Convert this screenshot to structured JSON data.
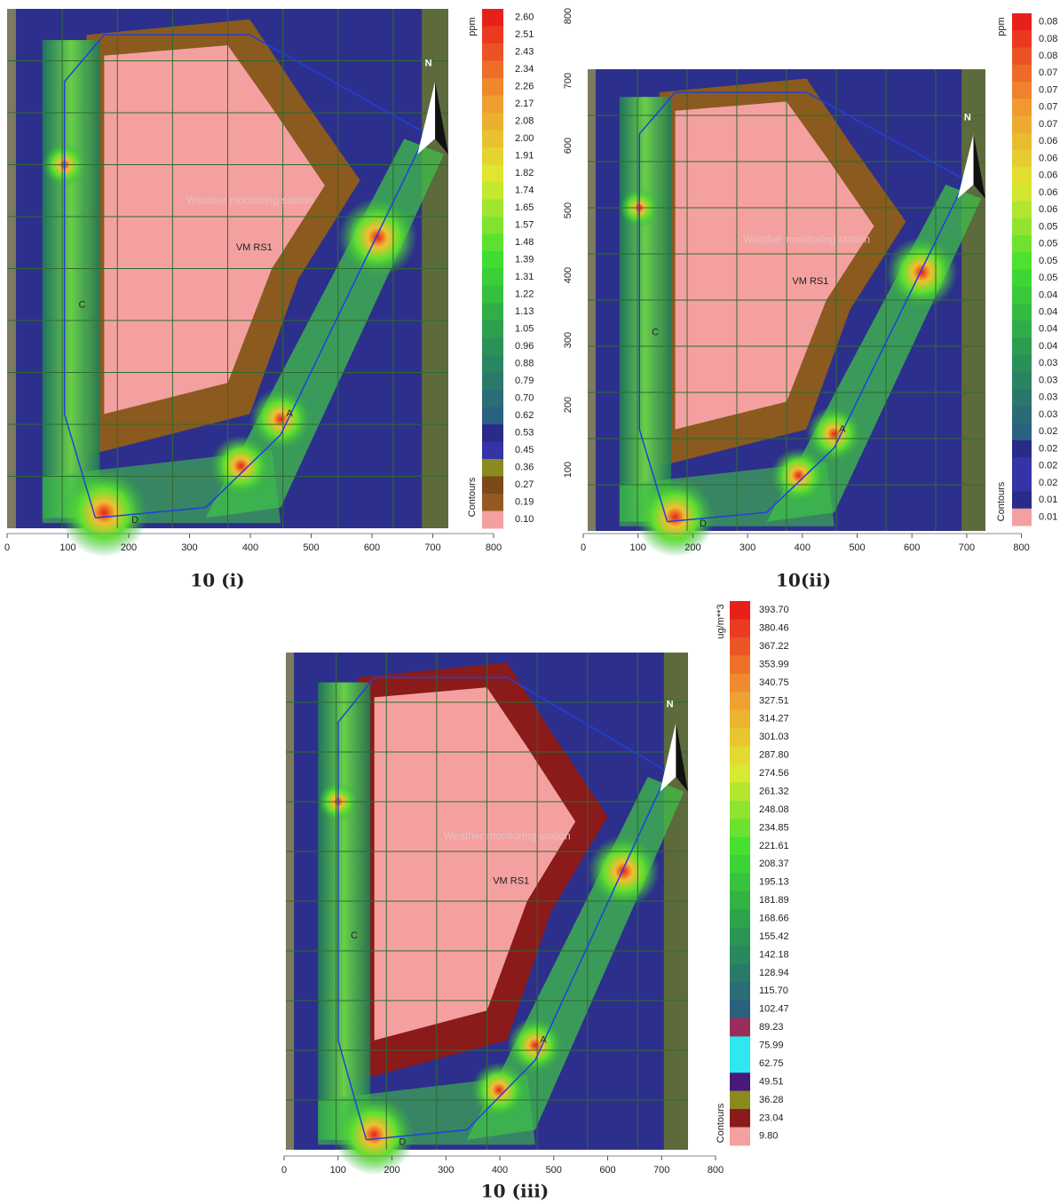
{
  "panels": [
    {
      "caption": "10 (i)",
      "unit": "ppm",
      "legend_title": "Contours",
      "legend_levels": [
        "2.60",
        "2.51",
        "2.43",
        "2.34",
        "2.26",
        "2.17",
        "2.08",
        "2.00",
        "1.91",
        "1.82",
        "1.74",
        "1.65",
        "1.57",
        "1.48",
        "1.39",
        "1.31",
        "1.22",
        "1.13",
        "1.05",
        "0.96",
        "0.88",
        "0.79",
        "0.70",
        "0.62",
        "0.53",
        "0.45",
        "0.36",
        "0.27",
        "0.19",
        "0.10"
      ],
      "x_ticks": [
        "0",
        "100",
        "200",
        "300",
        "400",
        "500",
        "600",
        "700",
        "800"
      ],
      "y_ticks": [],
      "map_labels": [
        "VM RS1",
        "A",
        "C",
        "D",
        "N",
        "Weather monitoring station"
      ]
    },
    {
      "caption": "10(ii)",
      "unit": "ppm",
      "legend_title": "Contours",
      "legend_levels": [
        "0.08",
        "0.08",
        "0.08",
        "0.07",
        "0.07",
        "0.07",
        "0.07",
        "0.06",
        "0.06",
        "0.06",
        "0.06",
        "0.06",
        "0.05",
        "0.05",
        "0.05",
        "0.05",
        "0.04",
        "0.04",
        "0.04",
        "0.04",
        "0.03",
        "0.03",
        "0.03",
        "0.03",
        "0.02",
        "0.02",
        "0.02",
        "0.02",
        "0.01",
        "0.01"
      ],
      "x_ticks": [
        "0",
        "100",
        "200",
        "300",
        "400",
        "500",
        "600",
        "700",
        "800"
      ],
      "y_ticks": [
        "800",
        "700",
        "600",
        "500",
        "400",
        "300",
        "200",
        "100"
      ],
      "map_labels": [
        "VM RS1",
        "A",
        "C",
        "D",
        "N",
        "Weather monitoring station"
      ]
    },
    {
      "caption": "10 (iii)",
      "unit": "ug/m**3",
      "legend_title": "Contours",
      "legend_levels": [
        "393.70",
        "380.46",
        "367.22",
        "353.99",
        "340.75",
        "327.51",
        "314.27",
        "301.03",
        "287.80",
        "274.56",
        "261.32",
        "248.08",
        "234.85",
        "221.61",
        "208.37",
        "195.13",
        "181.89",
        "168.66",
        "155.42",
        "142.18",
        "128.94",
        "115.70",
        "102.47",
        "89.23",
        "75.99",
        "62.75",
        "49.51",
        "36.28",
        "23.04",
        "9.80"
      ],
      "x_ticks": [
        "0",
        "100",
        "200",
        "300",
        "400",
        "500",
        "600",
        "700",
        "800"
      ],
      "y_ticks": [],
      "map_labels": [
        "VM RS1",
        "A",
        "C",
        "D",
        "N",
        "Weather monitoring station"
      ]
    }
  ]
}
